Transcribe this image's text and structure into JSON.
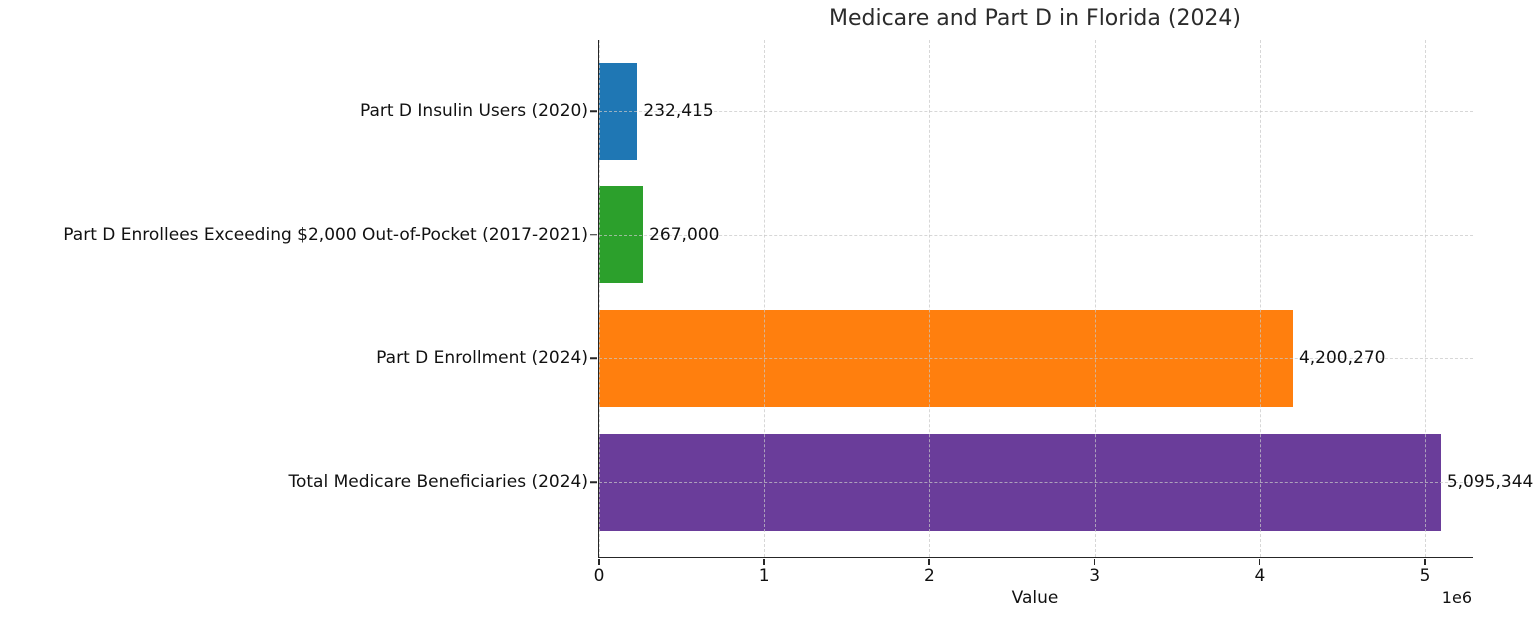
{
  "chart_data": {
    "type": "bar",
    "orientation": "horizontal",
    "title": "Medicare and Part D in Florida (2024)",
    "xlabel": "Value",
    "offset_text": "1e6",
    "categories": [
      "Part D Insulin Users (2020)",
      "Part D Enrollees Exceeding $2,000 Out-of-Pocket (2017-2021)",
      "Part D Enrollment (2024)",
      "Total Medicare Beneficiaries (2024)"
    ],
    "values": [
      232415,
      267000,
      4200270,
      5095344
    ],
    "value_labels": [
      "232,415",
      "267,000",
      "4,200,270",
      "5,095,344"
    ],
    "bar_colors": [
      "#1f77b4",
      "#2ca02c",
      "#ff7f0e",
      "#6a3d9a"
    ],
    "xlim": [
      0,
      5290000
    ],
    "x_ticks": [
      0,
      1000000,
      2000000,
      3000000,
      4000000,
      5000000
    ],
    "x_tick_labels": [
      "0",
      "1",
      "2",
      "3",
      "4",
      "5"
    ],
    "grid": true,
    "grid_style": "dashed",
    "legend": "none"
  }
}
